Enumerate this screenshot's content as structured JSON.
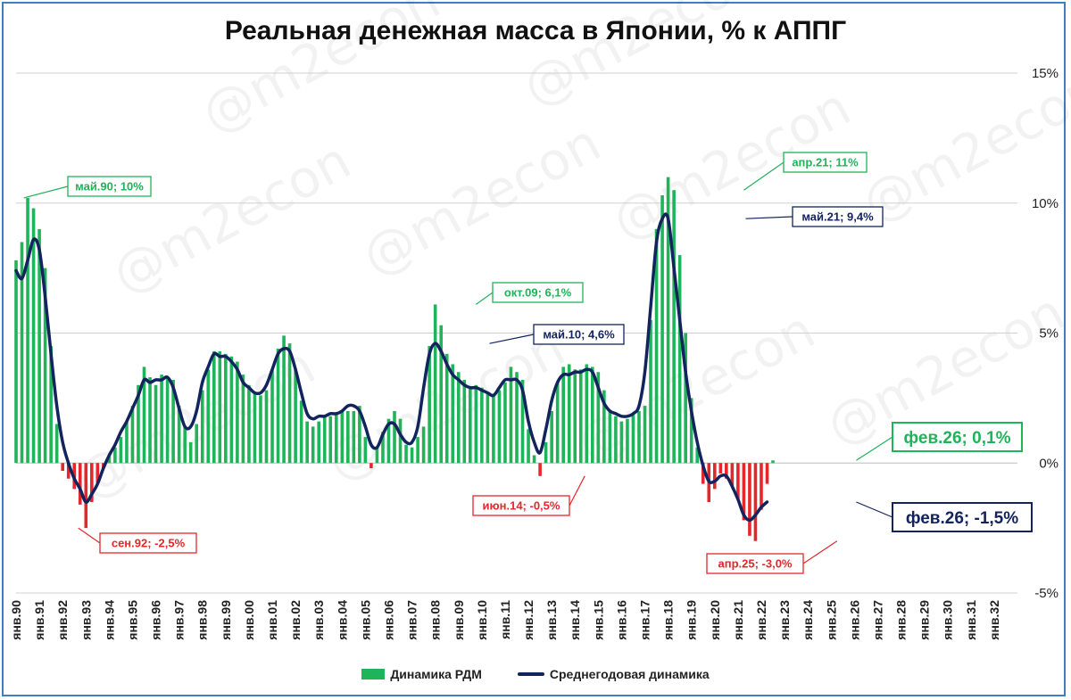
{
  "title": "Реальная денежная масса в Японии, % к АППГ",
  "watermark": "@m2econ",
  "colors": {
    "positive_bar": "#1fb35a",
    "negative_bar": "#e5262b",
    "average_line": "#12235e",
    "grid": "#d0d0d0",
    "frame": "#3f7fbf"
  },
  "legend": {
    "bars": "Динамика РДМ",
    "line": "Среднегодовая динамика"
  },
  "chart_data": {
    "type": "bar",
    "y_axis_position": "right",
    "ylim": [
      -5,
      15
    ],
    "y_ticks": [
      {
        "value": 15,
        "label": "15%"
      },
      {
        "value": 10,
        "label": "10%"
      },
      {
        "value": 5,
        "label": "5%"
      },
      {
        "value": 0,
        "label": "0%"
      },
      {
        "value": -5,
        "label": "-5%"
      }
    ],
    "x_start_year": 1990,
    "x_end_year": 2033,
    "x_tick_labels": [
      "янв.90",
      "янв.91",
      "янв.92",
      "янв.93",
      "янв.94",
      "янв.95",
      "янв.96",
      "янв.97",
      "янв.98",
      "янв.99",
      "янв.00",
      "янв.01",
      "янв.02",
      "янв.03",
      "янв.04",
      "янв.05",
      "янв.06",
      "янв.07",
      "янв.08",
      "янв.09",
      "янв.10",
      "янв.11",
      "янв.12",
      "янв.13",
      "янв.14",
      "янв.15",
      "янв.16",
      "янв.17",
      "янв.18",
      "янв.19",
      "янв.20",
      "янв.21",
      "янв.22",
      "янв.23",
      "янв.24",
      "янв.25",
      "янв.26",
      "янв.27",
      "янв.28",
      "янв.29",
      "янв.30",
      "янв.31",
      "янв.32"
    ],
    "series": [
      {
        "name": "Динамика РДМ",
        "kind": "bar",
        "start": "1990-01",
        "step_months": 3,
        "values": [
          7.8,
          8.5,
          10.2,
          9.8,
          9.0,
          7.5,
          4.5,
          1.5,
          -0.3,
          -0.6,
          -1.0,
          -1.6,
          -2.5,
          -1.5,
          -0.8,
          -0.2,
          0.3,
          0.6,
          1.0,
          1.6,
          2.2,
          3.0,
          3.7,
          3.3,
          3.0,
          3.4,
          3.3,
          3.2,
          2.2,
          1.4,
          0.8,
          1.5,
          2.8,
          3.6,
          4.3,
          4.3,
          4.2,
          4.1,
          3.9,
          3.4,
          3.0,
          2.7,
          2.6,
          2.8,
          3.6,
          4.4,
          4.9,
          4.6,
          3.6,
          2.4,
          1.6,
          1.4,
          1.6,
          1.8,
          1.8,
          1.9,
          2.0,
          2.0,
          2.0,
          2.2,
          1.0,
          -0.2,
          0.6,
          1.2,
          1.7,
          2.0,
          1.7,
          0.7,
          0.6,
          1.0,
          1.4,
          4.5,
          6.1,
          5.3,
          4.2,
          3.8,
          3.5,
          3.2,
          2.9,
          3.0,
          2.9,
          2.7,
          2.6,
          2.8,
          3.1,
          3.7,
          3.5,
          3.2,
          1.3,
          0.3,
          -0.5,
          0.8,
          2.0,
          3.1,
          3.7,
          3.8,
          3.6,
          3.6,
          3.8,
          3.7,
          3.5,
          2.8,
          2.0,
          1.8,
          1.6,
          1.7,
          1.9,
          2.0,
          2.2,
          5.5,
          9.0,
          10.3,
          11.0,
          10.5,
          8.0,
          5.0,
          2.5,
          0.6,
          -0.8,
          -1.5,
          -1.0,
          -0.4,
          -0.6,
          -0.9,
          -1.4,
          -2.2,
          -2.8,
          -3.0,
          -1.8,
          -0.8,
          0.1
        ]
      },
      {
        "name": "Среднегодовая динамика",
        "kind": "line",
        "start": "1990-01",
        "step_months": 3,
        "values": [
          7.4,
          7.1,
          7.8,
          8.6,
          8.2,
          6.4,
          4.2,
          2.2,
          0.8,
          0.0,
          -0.6,
          -1.0,
          -1.5,
          -1.2,
          -0.8,
          -0.2,
          0.3,
          0.7,
          1.2,
          1.6,
          2.1,
          2.6,
          3.2,
          3.1,
          3.2,
          3.2,
          3.3,
          2.9,
          2.1,
          1.4,
          1.4,
          2.0,
          3.1,
          3.7,
          4.2,
          4.1,
          4.1,
          3.9,
          3.6,
          3.1,
          2.9,
          2.7,
          2.7,
          3.0,
          3.6,
          4.2,
          4.4,
          4.3,
          3.6,
          2.7,
          1.9,
          1.7,
          1.8,
          1.8,
          1.9,
          1.9,
          2.0,
          2.2,
          2.2,
          2.0,
          1.4,
          0.7,
          0.6,
          1.1,
          1.5,
          1.5,
          1.1,
          0.8,
          0.8,
          1.4,
          2.9,
          4.2,
          4.6,
          4.3,
          3.8,
          3.4,
          3.2,
          3.0,
          2.9,
          2.9,
          2.8,
          2.7,
          2.6,
          2.9,
          3.2,
          3.2,
          3.2,
          2.8,
          1.6,
          0.8,
          0.4,
          1.3,
          2.4,
          3.1,
          3.4,
          3.4,
          3.5,
          3.5,
          3.6,
          3.5,
          2.9,
          2.3,
          2.0,
          1.9,
          1.8,
          1.8,
          1.9,
          2.2,
          3.5,
          6.0,
          8.5,
          9.4,
          9.4,
          7.5,
          5.5,
          3.5,
          2.0,
          0.8,
          -0.1,
          -0.7,
          -0.7,
          -0.5,
          -0.5,
          -0.9,
          -1.4,
          -2.0,
          -2.2,
          -2.0,
          -1.7,
          -1.5
        ]
      }
    ],
    "annotations": [
      {
        "text": "май.90; 10%",
        "x": 1990.33,
        "y": 10.2,
        "color": "#1fb35a",
        "size": "small"
      },
      {
        "text": "сен.92; -2,5%",
        "x": 1992.67,
        "y": -2.5,
        "color": "#e5262b",
        "size": "small"
      },
      {
        "text": "окт.09; 6,1%",
        "x": 2009.75,
        "y": 6.1,
        "color": "#1fb35a",
        "size": "small"
      },
      {
        "text": "май.10; 4,6%",
        "x": 2010.33,
        "y": 4.6,
        "color": "#12235e",
        "size": "small"
      },
      {
        "text": "июн.14; -0,5%",
        "x": 2014.42,
        "y": -0.5,
        "color": "#e5262b",
        "size": "small"
      },
      {
        "text": "апр.21; 11%",
        "x": 2021.25,
        "y": 10.5,
        "color": "#1fb35a",
        "size": "small"
      },
      {
        "text": "май.21; 9,4%",
        "x": 2021.33,
        "y": 9.4,
        "color": "#12235e",
        "size": "small"
      },
      {
        "text": "апр.25; -3,0%",
        "x": 2025.25,
        "y": -3.0,
        "color": "#e5262b",
        "size": "small"
      },
      {
        "text": "фев.26; 0,1%",
        "x": 2026.08,
        "y": 0.1,
        "color": "#1fb35a",
        "size": "large"
      },
      {
        "text": "фев.26; -1,5%",
        "x": 2026.08,
        "y": -1.5,
        "color": "#12235e",
        "size": "large"
      }
    ]
  }
}
